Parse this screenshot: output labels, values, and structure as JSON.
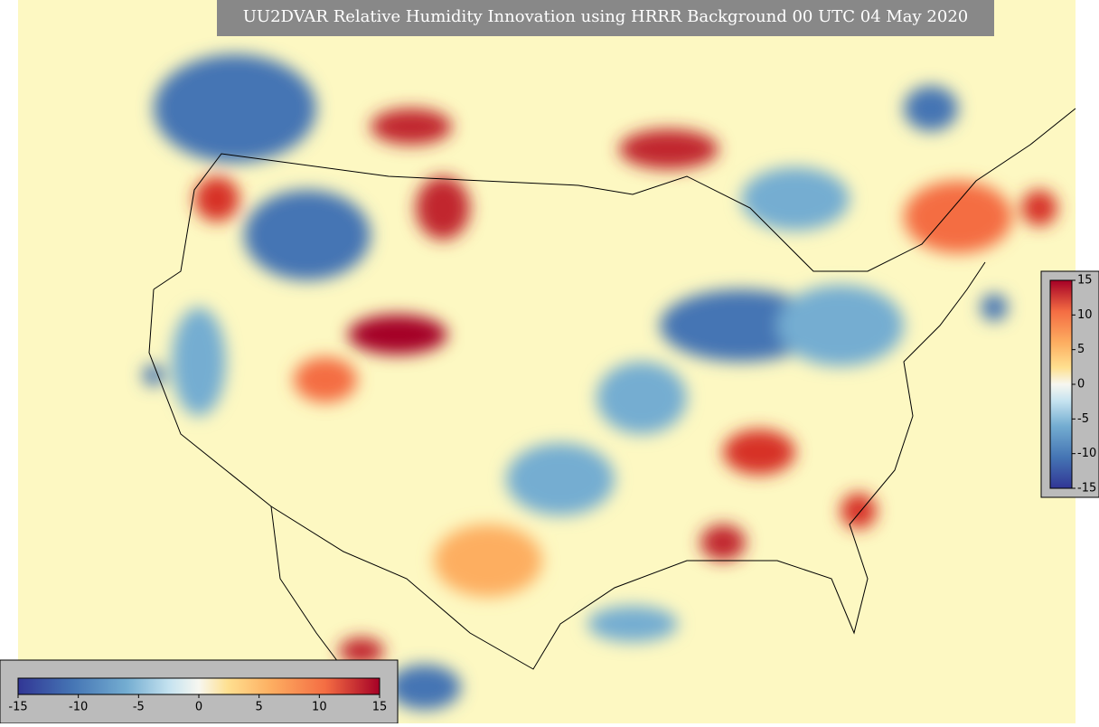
{
  "title": "UU2DVAR Relative Humidity Innovation using HRRR Background 00 UTC 04 May 2020",
  "colorbar_right": {
    "ticks": [
      15,
      10,
      5,
      0,
      -5,
      -10,
      -15
    ]
  },
  "colorbar_bottom": {
    "ticks": [
      -15,
      -10,
      -5,
      0,
      5,
      10,
      15
    ]
  }
}
